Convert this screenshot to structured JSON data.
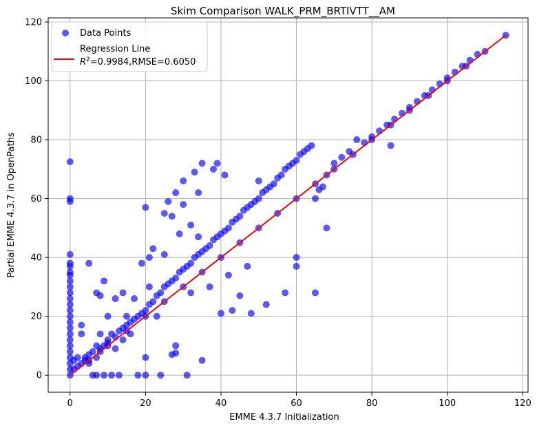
{
  "chart_data": {
    "type": "scatter",
    "title": "Skim Comparison WALK_PRM_BRTIVTT__AM",
    "xlabel": "EMME 4.3.7 Initialization",
    "ylabel": "Partial EMME 4.3.7 in OpenPaths",
    "xlim": [
      -5.8,
      121.4
    ],
    "ylim": [
      -5.8,
      121.4
    ],
    "xticks": [
      0,
      20,
      40,
      60,
      80,
      100,
      120
    ],
    "yticks": [
      0,
      20,
      40,
      60,
      80,
      100,
      120
    ],
    "grid": true,
    "legend_position": "top-left",
    "colors": {
      "points": "#0000ff",
      "regression": "#ff0000",
      "grid": "#b0b0b0"
    },
    "series": [
      {
        "name": "Data Points",
        "kind": "scatter",
        "points": [
          [
            0,
            0
          ],
          [
            0,
            2
          ],
          [
            0,
            4
          ],
          [
            0,
            6
          ],
          [
            0,
            8
          ],
          [
            0,
            10
          ],
          [
            0,
            12
          ],
          [
            0,
            14
          ],
          [
            0,
            16
          ],
          [
            0,
            18
          ],
          [
            0,
            20
          ],
          [
            0,
            22
          ],
          [
            0,
            24
          ],
          [
            0,
            26
          ],
          [
            0,
            28
          ],
          [
            0,
            30
          ],
          [
            0,
            32
          ],
          [
            0,
            34
          ],
          [
            0,
            35
          ],
          [
            0,
            37
          ],
          [
            0,
            38
          ],
          [
            0,
            41
          ],
          [
            0,
            59
          ],
          [
            0,
            60
          ],
          [
            0,
            72.5
          ],
          [
            1,
            2
          ],
          [
            1,
            5
          ],
          [
            2,
            3
          ],
          [
            2,
            6
          ],
          [
            3,
            4
          ],
          [
            3,
            17
          ],
          [
            3,
            14
          ],
          [
            4,
            5
          ],
          [
            4,
            6
          ],
          [
            5,
            4
          ],
          [
            5,
            7
          ],
          [
            5,
            38
          ],
          [
            6,
            0
          ],
          [
            6,
            8
          ],
          [
            7,
            0
          ],
          [
            7,
            6
          ],
          [
            7,
            10
          ],
          [
            7,
            28
          ],
          [
            8,
            9
          ],
          [
            8,
            8
          ],
          [
            8,
            14
          ],
          [
            8,
            27
          ],
          [
            9,
            0
          ],
          [
            9,
            10
          ],
          [
            9,
            32
          ],
          [
            10,
            12
          ],
          [
            10,
            11
          ],
          [
            10,
            20
          ],
          [
            11,
            0
          ],
          [
            11,
            14
          ],
          [
            12,
            13
          ],
          [
            12,
            9
          ],
          [
            12,
            26
          ],
          [
            13,
            15
          ],
          [
            13,
            0
          ],
          [
            14,
            16
          ],
          [
            14,
            12
          ],
          [
            14,
            28
          ],
          [
            15,
            17
          ],
          [
            15,
            20
          ],
          [
            16,
            18
          ],
          [
            16,
            14
          ],
          [
            17,
            19
          ],
          [
            17,
            26
          ],
          [
            18,
            20
          ],
          [
            18,
            0
          ],
          [
            19,
            21
          ],
          [
            19,
            38
          ],
          [
            20,
            22
          ],
          [
            20,
            0
          ],
          [
            20,
            6
          ],
          [
            20,
            57
          ],
          [
            21,
            24
          ],
          [
            21,
            30
          ],
          [
            21,
            40
          ],
          [
            22,
            25
          ],
          [
            22,
            43
          ],
          [
            23,
            27
          ],
          [
            23,
            20
          ],
          [
            24,
            28
          ],
          [
            24,
            0
          ],
          [
            25,
            30
          ],
          [
            25,
            41
          ],
          [
            25,
            55
          ],
          [
            26,
            31
          ],
          [
            26,
            59
          ],
          [
            27,
            32
          ],
          [
            27,
            7
          ],
          [
            27,
            54
          ],
          [
            28,
            33
          ],
          [
            28,
            10
          ],
          [
            28,
            7.5
          ],
          [
            28,
            62
          ],
          [
            29,
            35
          ],
          [
            29,
            48
          ],
          [
            30,
            36
          ],
          [
            30,
            58
          ],
          [
            30,
            66
          ],
          [
            31,
            37
          ],
          [
            31,
            0
          ],
          [
            32,
            38
          ],
          [
            32,
            51
          ],
          [
            32,
            28
          ],
          [
            33,
            40
          ],
          [
            33,
            69
          ],
          [
            34,
            41
          ],
          [
            34,
            47
          ],
          [
            34,
            62
          ],
          [
            35,
            42
          ],
          [
            35,
            5
          ],
          [
            35,
            72
          ],
          [
            36,
            43
          ],
          [
            37,
            44
          ],
          [
            37,
            30
          ],
          [
            38,
            46
          ],
          [
            38,
            70
          ],
          [
            39,
            47
          ],
          [
            39,
            72
          ],
          [
            40,
            48
          ],
          [
            40,
            21
          ],
          [
            41,
            49
          ],
          [
            41,
            68
          ],
          [
            42,
            50
          ],
          [
            42,
            34
          ],
          [
            43,
            52
          ],
          [
            43,
            22
          ],
          [
            44,
            53
          ],
          [
            45,
            54
          ],
          [
            45,
            27
          ],
          [
            46,
            56
          ],
          [
            47,
            57
          ],
          [
            47,
            37
          ],
          [
            48,
            58
          ],
          [
            48,
            21
          ],
          [
            49,
            59
          ],
          [
            50,
            60
          ],
          [
            50,
            66
          ],
          [
            51,
            62
          ],
          [
            52,
            63
          ],
          [
            52,
            24
          ],
          [
            53,
            64
          ],
          [
            54,
            65
          ],
          [
            55,
            67
          ],
          [
            56,
            68
          ],
          [
            57,
            70
          ],
          [
            57,
            28
          ],
          [
            58,
            71
          ],
          [
            59,
            72
          ],
          [
            60,
            73
          ],
          [
            60,
            40
          ],
          [
            60,
            37
          ],
          [
            61,
            75
          ],
          [
            62,
            76
          ],
          [
            63,
            77
          ],
          [
            64,
            78
          ],
          [
            65,
            28
          ],
          [
            65,
            60
          ],
          [
            66,
            63
          ],
          [
            67,
            64
          ],
          [
            68,
            50
          ],
          [
            68,
            68
          ],
          [
            70,
            72
          ],
          [
            72,
            74
          ],
          [
            74,
            76
          ],
          [
            76,
            80
          ],
          [
            78,
            79
          ],
          [
            80,
            81
          ],
          [
            82,
            83
          ],
          [
            84,
            85
          ],
          [
            85,
            78
          ],
          [
            86,
            87
          ],
          [
            88,
            89
          ],
          [
            90,
            91
          ],
          [
            92,
            93
          ],
          [
            94,
            95
          ],
          [
            96,
            97
          ],
          [
            98,
            99
          ],
          [
            100,
            101
          ],
          [
            102,
            103
          ],
          [
            104,
            105
          ],
          [
            106,
            107
          ],
          [
            108,
            109
          ],
          [
            110,
            110
          ],
          [
            115.5,
            115.5
          ],
          [
            40,
            40
          ],
          [
            45,
            45
          ],
          [
            50,
            50
          ],
          [
            55,
            55
          ],
          [
            60,
            60
          ],
          [
            65,
            65
          ],
          [
            70,
            70
          ],
          [
            75,
            75
          ],
          [
            80,
            80
          ],
          [
            85,
            85
          ],
          [
            90,
            90
          ],
          [
            95,
            95
          ],
          [
            100,
            100
          ],
          [
            105,
            105
          ],
          [
            10,
            10
          ],
          [
            15,
            15
          ],
          [
            20,
            20
          ],
          [
            25,
            25
          ],
          [
            30,
            30
          ],
          [
            35,
            35
          ],
          [
            5,
            5
          ]
        ]
      },
      {
        "name": "Regression Line",
        "kind": "line",
        "legend_line2": "=0.9984,RMSE=0.6050",
        "legend_r2_symbol": "R",
        "legend_r2_sup": "2",
        "from": [
          0,
          0
        ],
        "to": [
          115.5,
          115.5
        ]
      }
    ]
  }
}
